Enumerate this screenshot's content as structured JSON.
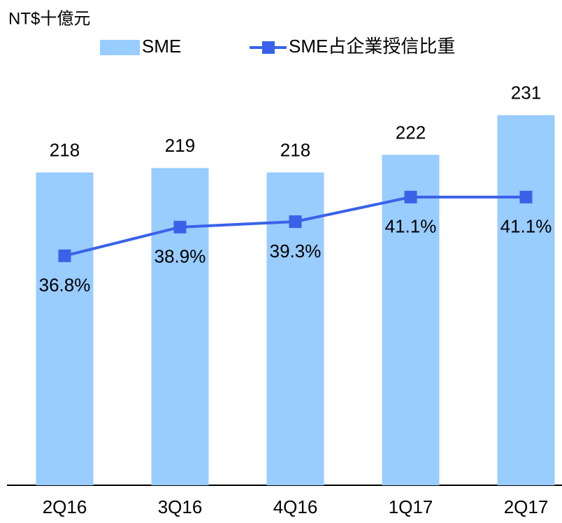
{
  "chart_data": {
    "type": "bar",
    "title": "NT$十億元",
    "categories": [
      "2Q16",
      "3Q16",
      "4Q16",
      "1Q17",
      "2Q17"
    ],
    "series": [
      {
        "name": "SME",
        "type": "bar",
        "color": "#99ccff",
        "values": [
          218,
          219,
          218,
          222,
          231
        ]
      },
      {
        "name": "SME占企業授信比重",
        "type": "line",
        "axis": "y2",
        "color": "#3a62e8",
        "values": [
          36.8,
          38.9,
          39.3,
          41.1,
          41.1
        ],
        "value_labels": [
          "36.8%",
          "38.9%",
          "39.3%",
          "41.1%",
          "41.1%"
        ]
      }
    ],
    "ylim": [
      147,
      240
    ],
    "y2lim": [
      20,
      50
    ],
    "legend": "top"
  }
}
